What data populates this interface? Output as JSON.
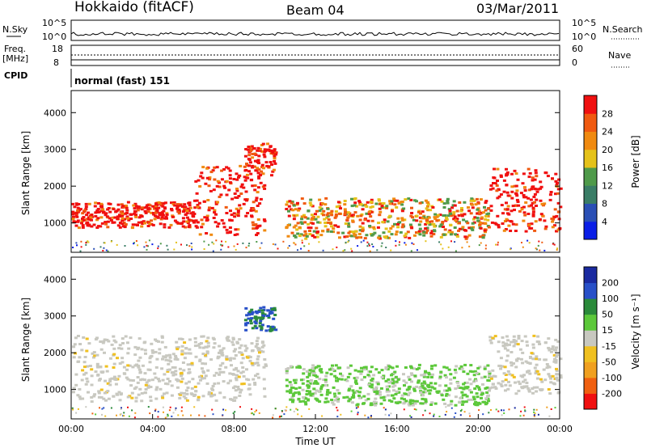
{
  "header": {
    "station": "Hokkaido (fitACF)",
    "beam": "Beam 04",
    "date": "03/Mar/2011"
  },
  "status_panels": {
    "nsky_label": "N.Sky",
    "nsearch_label": "N.Search",
    "nsky_ticks": [
      "10^5",
      "10^0"
    ],
    "nsearch_ticks": [
      "10^5",
      "10^0"
    ],
    "freq_label_1": "Freq.",
    "freq_label_2": "[MHz]",
    "freq_ticks": [
      "18",
      "8"
    ],
    "nave_label": "Nave",
    "nave_ticks": [
      "60",
      "0"
    ],
    "cpid_label": "CPID",
    "cpid_value": "normal (fast) 151"
  },
  "colors": {
    "power_scale": [
      "#0a1ee6",
      "#2a4fb5",
      "#3a7d66",
      "#4f9a4a",
      "#e5c21a",
      "#f08a10",
      "#f05a10",
      "#f01010"
    ],
    "velocity_scale": [
      "#1a2aa0",
      "#2850c8",
      "#2a8a3a",
      "#5cc83a",
      "#c8c8c0",
      "#f0c020",
      "#f0a020",
      "#f06010",
      "#f01010"
    ]
  },
  "chart_data": [
    {
      "type": "heatmap",
      "panel": "power",
      "ylabel": "Slant Range [km]",
      "xlabel": "Time UT",
      "x_ticks": [
        "00:00",
        "04:00",
        "08:00",
        "12:00",
        "16:00",
        "20:00",
        "00:00"
      ],
      "y_ticks": [
        1000,
        2000,
        3000,
        4000
      ],
      "ylim": [
        200,
        4600
      ],
      "xlim_hours": [
        0,
        24
      ],
      "colorbar_label": "Power [dB]",
      "colorbar_ticks": [
        4,
        8,
        12,
        16,
        20,
        24,
        28
      ],
      "features": [
        {
          "start_h": 0,
          "end_h": 6,
          "range_low": 900,
          "range_high": 1600,
          "level": "strong"
        },
        {
          "start_h": 6,
          "end_h": 9.5,
          "range_low": 700,
          "range_high": 2600,
          "level": "strong"
        },
        {
          "start_h": 8.5,
          "end_h": 10,
          "range_low": 2300,
          "range_high": 3200,
          "level": "strong"
        },
        {
          "start_h": 10.5,
          "end_h": 20.5,
          "range_low": 600,
          "range_high": 1700,
          "level": "mixed"
        },
        {
          "start_h": 20.5,
          "end_h": 24,
          "range_low": 800,
          "range_high": 2500,
          "level": "strong"
        }
      ]
    },
    {
      "type": "heatmap",
      "panel": "velocity",
      "ylabel": "Slant Range [km]",
      "xlabel": "Time UT",
      "x_ticks": [
        "00:00",
        "04:00",
        "08:00",
        "12:00",
        "16:00",
        "20:00",
        "00:00"
      ],
      "y_ticks": [
        1000,
        2000,
        3000,
        4000
      ],
      "ylim": [
        200,
        4600
      ],
      "xlim_hours": [
        0,
        24
      ],
      "colorbar_label": "Velocity [m s⁻¹]",
      "colorbar_ticks": [
        200,
        100,
        50,
        15,
        -15,
        -50,
        -100,
        -200
      ],
      "features": [
        {
          "start_h": 0,
          "end_h": 9.5,
          "range_low": 700,
          "range_high": 2500,
          "level": "ground_scatter"
        },
        {
          "start_h": 8.5,
          "end_h": 10,
          "range_low": 2600,
          "range_high": 3300,
          "level": "positive"
        },
        {
          "start_h": 10.5,
          "end_h": 20.5,
          "range_low": 600,
          "range_high": 1700,
          "level": "positive_weak"
        },
        {
          "start_h": 20.5,
          "end_h": 24,
          "range_low": 900,
          "range_high": 2500,
          "level": "ground_scatter"
        }
      ]
    }
  ]
}
